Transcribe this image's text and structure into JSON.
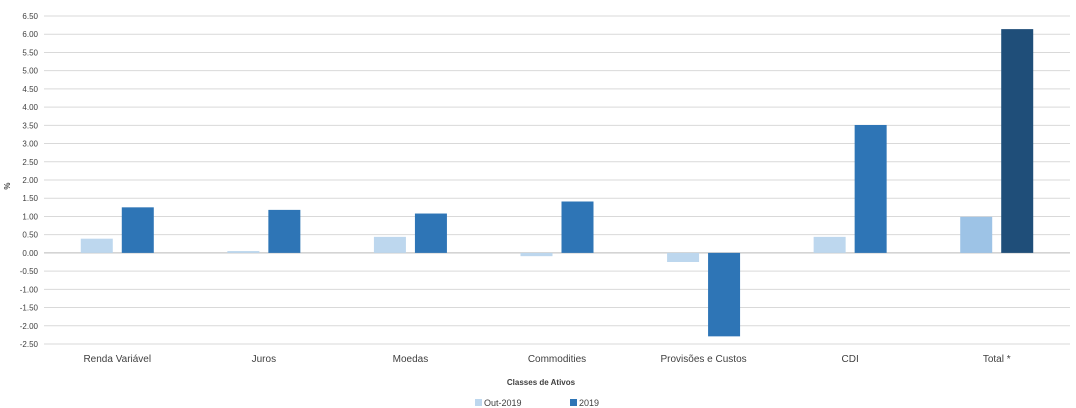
{
  "chart_data": {
    "type": "bar",
    "xlabel": "Classes de Ativos",
    "ylabel": "%",
    "ylim": [
      -2.5,
      6.5
    ],
    "ytick_step": 0.5,
    "grid": true,
    "legend_position": "bottom",
    "categories": [
      "Renda Variável",
      "Juros",
      "Moedas",
      "Commodities",
      "Provisões e Custos",
      "CDI",
      "Total *"
    ],
    "series": [
      {
        "name": "Out-2019",
        "color": "#bdd7ee",
        "values": [
          0.39,
          0.05,
          0.44,
          -0.09,
          -0.25,
          0.44,
          0.99
        ],
        "highlight": {
          "index": 6,
          "color": "#9dc3e6"
        }
      },
      {
        "name": "2019",
        "color": "#2e75b6",
        "values": [
          1.25,
          1.18,
          1.08,
          1.41,
          -2.29,
          3.51,
          6.14
        ],
        "highlight": {
          "index": 6,
          "color": "#1f4e79"
        }
      }
    ]
  }
}
